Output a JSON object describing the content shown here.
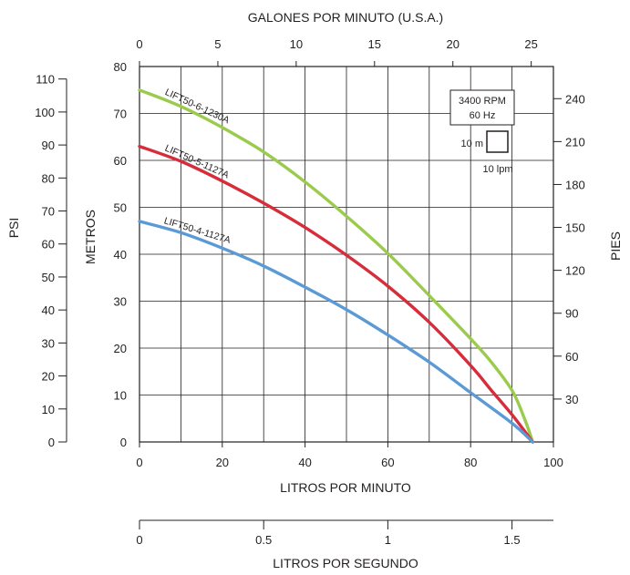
{
  "chart_data": {
    "type": "line",
    "axes": {
      "x_bottom": {
        "label": "LITROS POR MINUTO",
        "min": 0,
        "max": 100,
        "ticks": [
          "0",
          "20",
          "40",
          "60",
          "80",
          "100"
        ]
      },
      "x_top": {
        "label": "GALONES POR MINUTO (U.S.A.)",
        "min": 0,
        "max": 26.417,
        "ticks": [
          "0",
          "5",
          "10",
          "15",
          "20",
          "25"
        ]
      },
      "x_second_bottom": {
        "label": "LITROS POR SEGUNDO",
        "min": 0,
        "max": 1.6667,
        "ticks": [
          "0",
          "0.5",
          "1",
          "1.5"
        ]
      },
      "y_left_inner": {
        "label": "METROS",
        "min": 0,
        "max": 80,
        "ticks": [
          "0",
          "10",
          "20",
          "30",
          "40",
          "50",
          "60",
          "70",
          "80"
        ]
      },
      "y_left_outer": {
        "label": "PSI",
        "min": 0,
        "max": 113.78,
        "ticks": [
          "0",
          "10",
          "20",
          "30",
          "40",
          "50",
          "60",
          "70",
          "80",
          "90",
          "100",
          "110"
        ]
      },
      "y_right": {
        "label": "PIES",
        "min": 0,
        "max": 262.47,
        "ticks": [
          "30",
          "60",
          "90",
          "120",
          "150",
          "180",
          "210",
          "240"
        ]
      }
    },
    "grid": true,
    "series": [
      {
        "name": "LIFT50-6-1230A",
        "color": "#9bcb4c",
        "x": [
          0,
          10,
          20,
          30,
          40,
          50,
          60,
          70,
          80,
          85,
          90,
          93,
          95
        ],
        "y": [
          75,
          71.5,
          67,
          61.8,
          55.4,
          48.1,
          40.2,
          31.2,
          22,
          17,
          11,
          5,
          0
        ]
      },
      {
        "name": "LIFT50-5-1127A",
        "color": "#d72d3b",
        "x": [
          0,
          10,
          20,
          30,
          40,
          50,
          60,
          70,
          80,
          85,
          90,
          95
        ],
        "y": [
          63,
          59.8,
          55.6,
          50.9,
          45.7,
          39.8,
          33.2,
          25.5,
          16.3,
          11,
          5.8,
          0
        ]
      },
      {
        "name": "LIFT50-4-1127A",
        "color": "#5b9ad5",
        "x": [
          0,
          10,
          20,
          30,
          40,
          50,
          60,
          70,
          80,
          90,
          95
        ],
        "y": [
          47,
          44.6,
          41.3,
          37.5,
          33,
          28.2,
          22.8,
          17,
          10.5,
          4,
          0
        ]
      }
    ],
    "annotations": {
      "rpm": "3400 RPM",
      "hz": "60 Hz",
      "scale_vertical": "10 m",
      "scale_horizontal": "10 lpm"
    }
  }
}
